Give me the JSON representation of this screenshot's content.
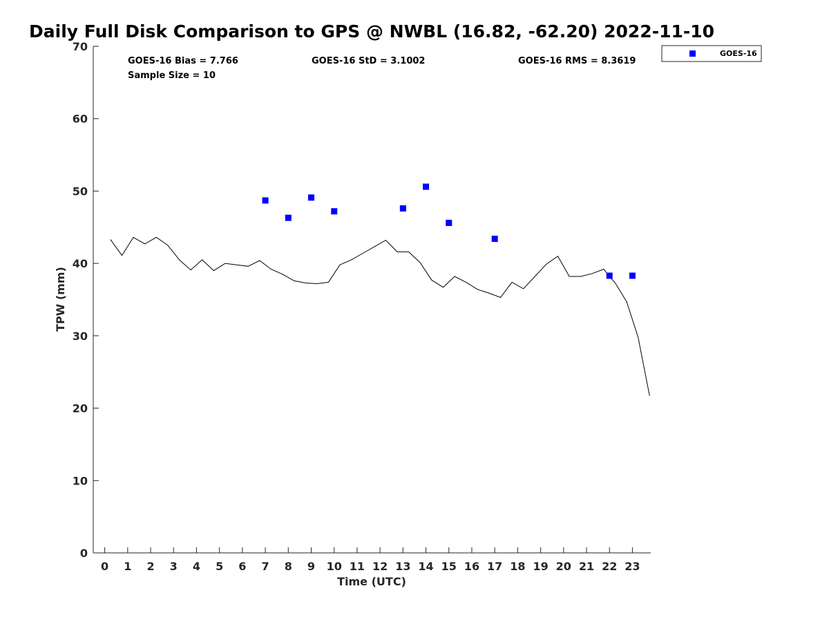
{
  "chart_data": {
    "type": "line",
    "title": "Daily Full Disk Comparison to GPS @ NWBL (16.82, -62.20) 2022-11-10",
    "xlabel": "Time (UTC)",
    "ylabel": "TPW (mm)",
    "xlim": [
      -0.5,
      23.8
    ],
    "ylim": [
      0,
      70
    ],
    "x_ticks": [
      0,
      1,
      2,
      3,
      4,
      5,
      6,
      7,
      8,
      9,
      10,
      11,
      12,
      13,
      14,
      15,
      16,
      17,
      18,
      19,
      20,
      21,
      22,
      23
    ],
    "y_ticks": [
      0,
      10,
      20,
      30,
      40,
      50,
      60,
      70
    ],
    "grid": false,
    "legend_position": "top-right outside plot",
    "stats": {
      "bias": "GOES-16 Bias = 7.766",
      "std": "GOES-16 StD = 3.1002",
      "rms": "GOES-16 RMS = 8.3619",
      "sample_size": "Sample Size = 10"
    },
    "series": [
      {
        "type": "line",
        "color": "#000000",
        "x": [
          0.25,
          0.75,
          1.25,
          1.75,
          2.25,
          2.75,
          3.25,
          3.75,
          4.25,
          4.75,
          5.25,
          5.75,
          6.25,
          6.75,
          7.25,
          7.75,
          8.25,
          8.75,
          9.25,
          9.75,
          10.25,
          10.75,
          11.25,
          11.75,
          12.25,
          12.75,
          13.25,
          13.75,
          14.25,
          14.75,
          15.25,
          15.75,
          16.25,
          16.75,
          17.25,
          17.75,
          18.25,
          18.75,
          19.25,
          19.75,
          20.25,
          20.75,
          21.25,
          21.75,
          22.0,
          22.25,
          22.75,
          23.25,
          23.75
        ],
        "y": [
          43.3,
          41.1,
          43.6,
          42.7,
          43.6,
          42.5,
          40.5,
          39.1,
          40.5,
          39.0,
          40.0,
          39.8,
          39.6,
          40.4,
          39.2,
          38.5,
          37.6,
          37.3,
          37.2,
          37.4,
          39.8,
          40.5,
          41.4,
          42.3,
          43.2,
          41.6,
          41.6,
          40.1,
          37.7,
          36.7,
          38.2,
          37.4,
          36.4,
          35.9,
          35.3,
          37.4,
          36.5,
          38.2,
          39.9,
          41.0,
          38.2,
          38.2,
          38.6,
          39.2,
          38.2,
          37.3,
          34.7,
          29.8,
          21.7
        ]
      },
      {
        "name": "GOES-16",
        "type": "scatter",
        "color": "#0000ff",
        "x": [
          7,
          8,
          9,
          10,
          13,
          14,
          15,
          17,
          22,
          23
        ],
        "y": [
          48.7,
          46.3,
          49.1,
          47.2,
          47.6,
          50.6,
          45.6,
          43.4,
          38.3,
          38.3
        ]
      }
    ]
  }
}
